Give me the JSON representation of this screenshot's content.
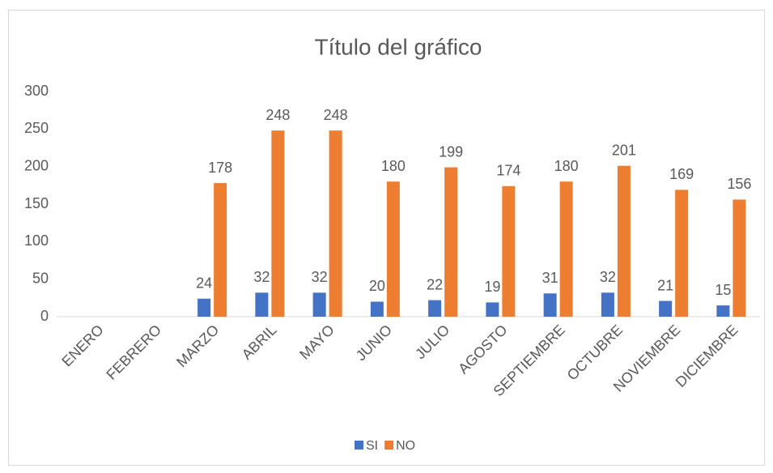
{
  "chart_data": {
    "type": "bar",
    "title": "Título del gráfico",
    "categories": [
      "ENERO",
      "FEBRERO",
      "MARZO",
      "ABRIL",
      "MAYO",
      "JUNIO",
      "JULIO",
      "AGOSTO",
      "SEPTIEMBRE",
      "OCTUBRE",
      "NOVIEMBRE",
      "DICIEMBRE"
    ],
    "series": [
      {
        "name": "SI",
        "color": "#4472c4",
        "values": [
          null,
          null,
          24,
          32,
          32,
          20,
          22,
          19,
          31,
          32,
          21,
          15
        ]
      },
      {
        "name": "NO",
        "color": "#ed7d31",
        "values": [
          null,
          null,
          178,
          248,
          248,
          180,
          199,
          174,
          180,
          201,
          169,
          156
        ]
      }
    ],
    "ylim": [
      0,
      300
    ],
    "yticks": [
      0,
      50,
      100,
      150,
      200,
      250,
      300
    ],
    "grid": false,
    "legend": "bottom"
  }
}
